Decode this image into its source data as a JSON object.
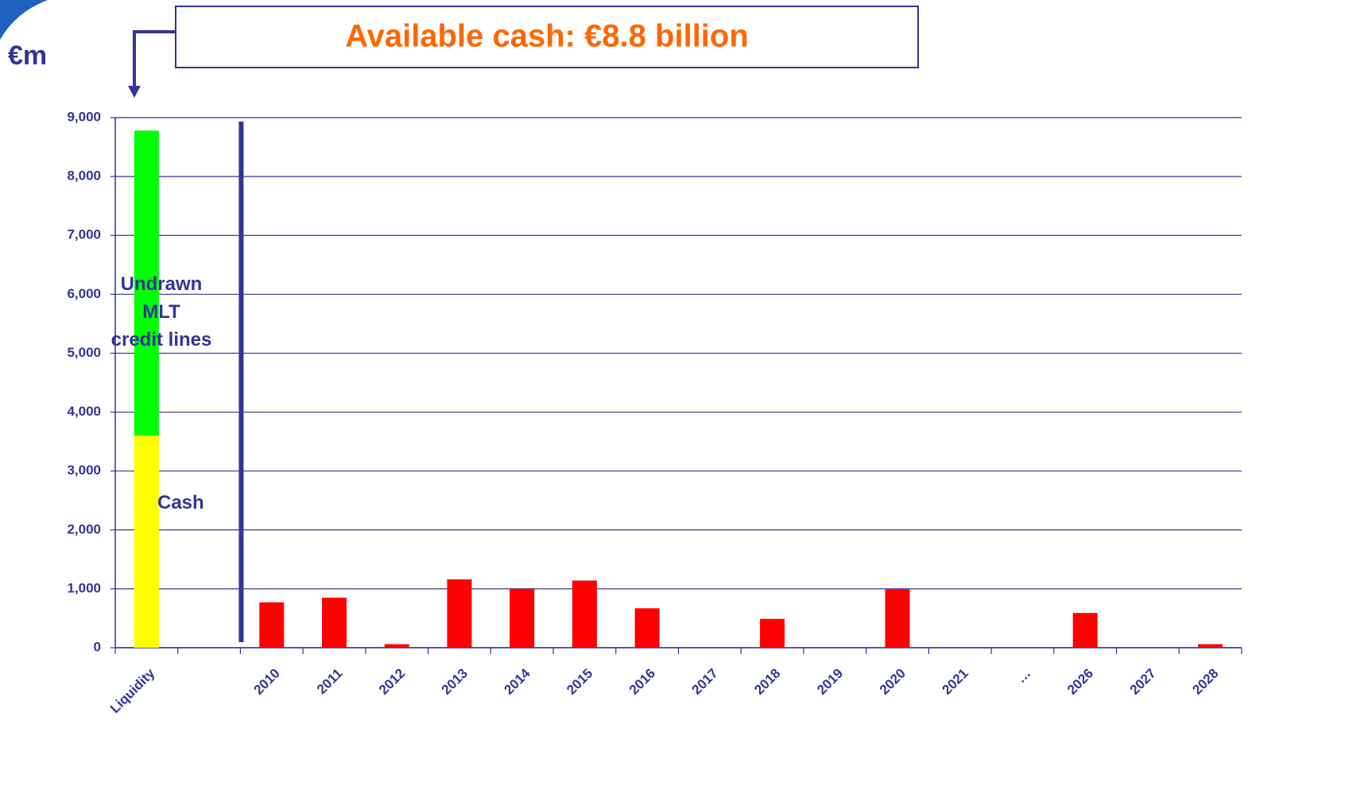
{
  "chart_data": {
    "type": "bar",
    "title": "Available cash: €8.8 billion",
    "y_label": "€m",
    "categories": [
      "Liquidity",
      null,
      "2010",
      "2011",
      "2012",
      "2013",
      "2014",
      "2015",
      "2016",
      "2017",
      "2018",
      "2019",
      "2020",
      "2021",
      "…",
      "2026",
      "2027",
      "2028"
    ],
    "series": [
      {
        "name": "Cash",
        "color": "#ffff00",
        "values": [
          3600,
          null,
          null,
          null,
          null,
          null,
          null,
          null,
          null,
          null,
          null,
          null,
          null,
          null,
          null,
          null,
          null,
          null
        ]
      },
      {
        "name": "Undrawn\nMLT\ncredit lines",
        "color": "#00ff00",
        "values": [
          5180,
          null,
          null,
          null,
          null,
          null,
          null,
          null,
          null,
          null,
          null,
          null,
          null,
          null,
          null,
          null,
          null,
          null
        ]
      },
      {
        "color": "#ff0000",
        "values": [
          null,
          null,
          770,
          850,
          60,
          1160,
          1000,
          1140,
          670,
          null,
          490,
          null,
          990,
          null,
          null,
          590,
          null,
          60
        ]
      }
    ],
    "stacked": true,
    "ylim": [
      0,
      9000
    ],
    "yticks": [
      0,
      {
        "value": 1000,
        "label": "1,000"
      },
      {
        "value": 2000,
        "label": "2,000"
      },
      {
        "value": 3000,
        "label": "3,000"
      },
      {
        "value": 4000,
        "label": "4,000"
      },
      {
        "value": 5000,
        "label": "5,000"
      },
      {
        "value": 6000,
        "label": "6,000"
      },
      {
        "value": 7000,
        "label": "7,000"
      },
      {
        "value": 8000,
        "label": "8,000"
      },
      {
        "value": 9000,
        "label": "9,000"
      }
    ],
    "grid": true
  }
}
